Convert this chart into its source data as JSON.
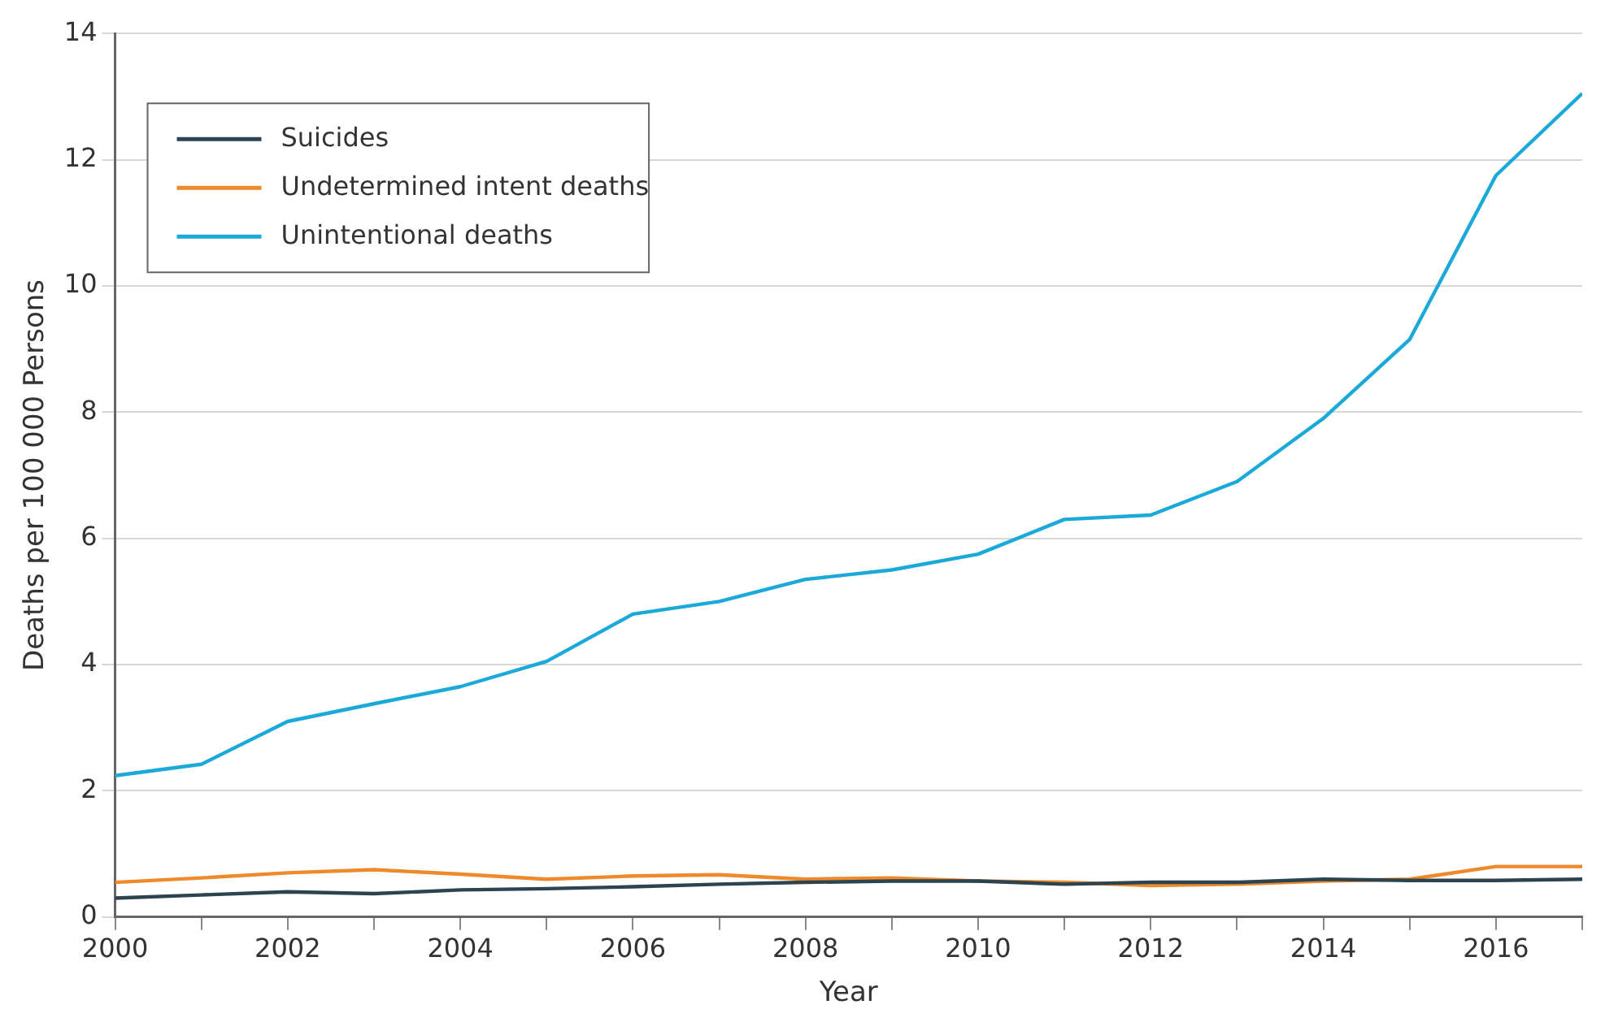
{
  "chart_data": {
    "type": "line",
    "xlabel": "Year",
    "ylabel": "Deaths per 100 000 Persons",
    "x": [
      2000,
      2001,
      2002,
      2003,
      2004,
      2005,
      2006,
      2007,
      2008,
      2009,
      2010,
      2011,
      2012,
      2013,
      2014,
      2015,
      2016,
      2017
    ],
    "series": [
      {
        "name": "Suicides",
        "color": "#2b4450",
        "values": [
          0.3,
          0.35,
          0.4,
          0.37,
          0.43,
          0.45,
          0.48,
          0.52,
          0.55,
          0.57,
          0.57,
          0.52,
          0.55,
          0.55,
          0.6,
          0.58,
          0.58,
          0.6
        ]
      },
      {
        "name": "Undetermined intent deaths",
        "color": "#ee8a2c",
        "values": [
          0.55,
          0.62,
          0.7,
          0.75,
          0.68,
          0.6,
          0.65,
          0.67,
          0.6,
          0.62,
          0.57,
          0.55,
          0.5,
          0.52,
          0.57,
          0.6,
          0.8,
          0.8
        ]
      },
      {
        "name": "Unintentional deaths",
        "color": "#1aa9d8",
        "values": [
          2.24,
          2.42,
          3.1,
          3.38,
          3.65,
          4.05,
          4.8,
          5.0,
          5.35,
          5.5,
          5.75,
          6.3,
          6.37,
          6.9,
          7.9,
          9.15,
          11.75,
          13.05
        ]
      }
    ],
    "xlim": [
      2000,
      2017
    ],
    "xticks": [
      2000,
      {
        "value": 2001,
        "label": null
      },
      2002,
      {
        "value": 2003,
        "label": null
      },
      2004,
      {
        "value": 2005,
        "label": null
      },
      2006,
      {
        "value": 2007,
        "label": null
      },
      2008,
      {
        "value": 2009,
        "label": null
      },
      2010,
      {
        "value": 2011,
        "label": null
      },
      2012,
      {
        "value": 2013,
        "label": null
      },
      2014,
      {
        "value": 2015,
        "label": null
      },
      2016,
      {
        "value": 2017,
        "label": null
      }
    ],
    "ylim": [
      0,
      14
    ],
    "yticks": [
      0,
      2,
      4,
      6,
      8,
      10,
      12,
      14
    ],
    "grid": "y",
    "legend": "top left",
    "marker": "none",
    "line_style": "solid"
  }
}
